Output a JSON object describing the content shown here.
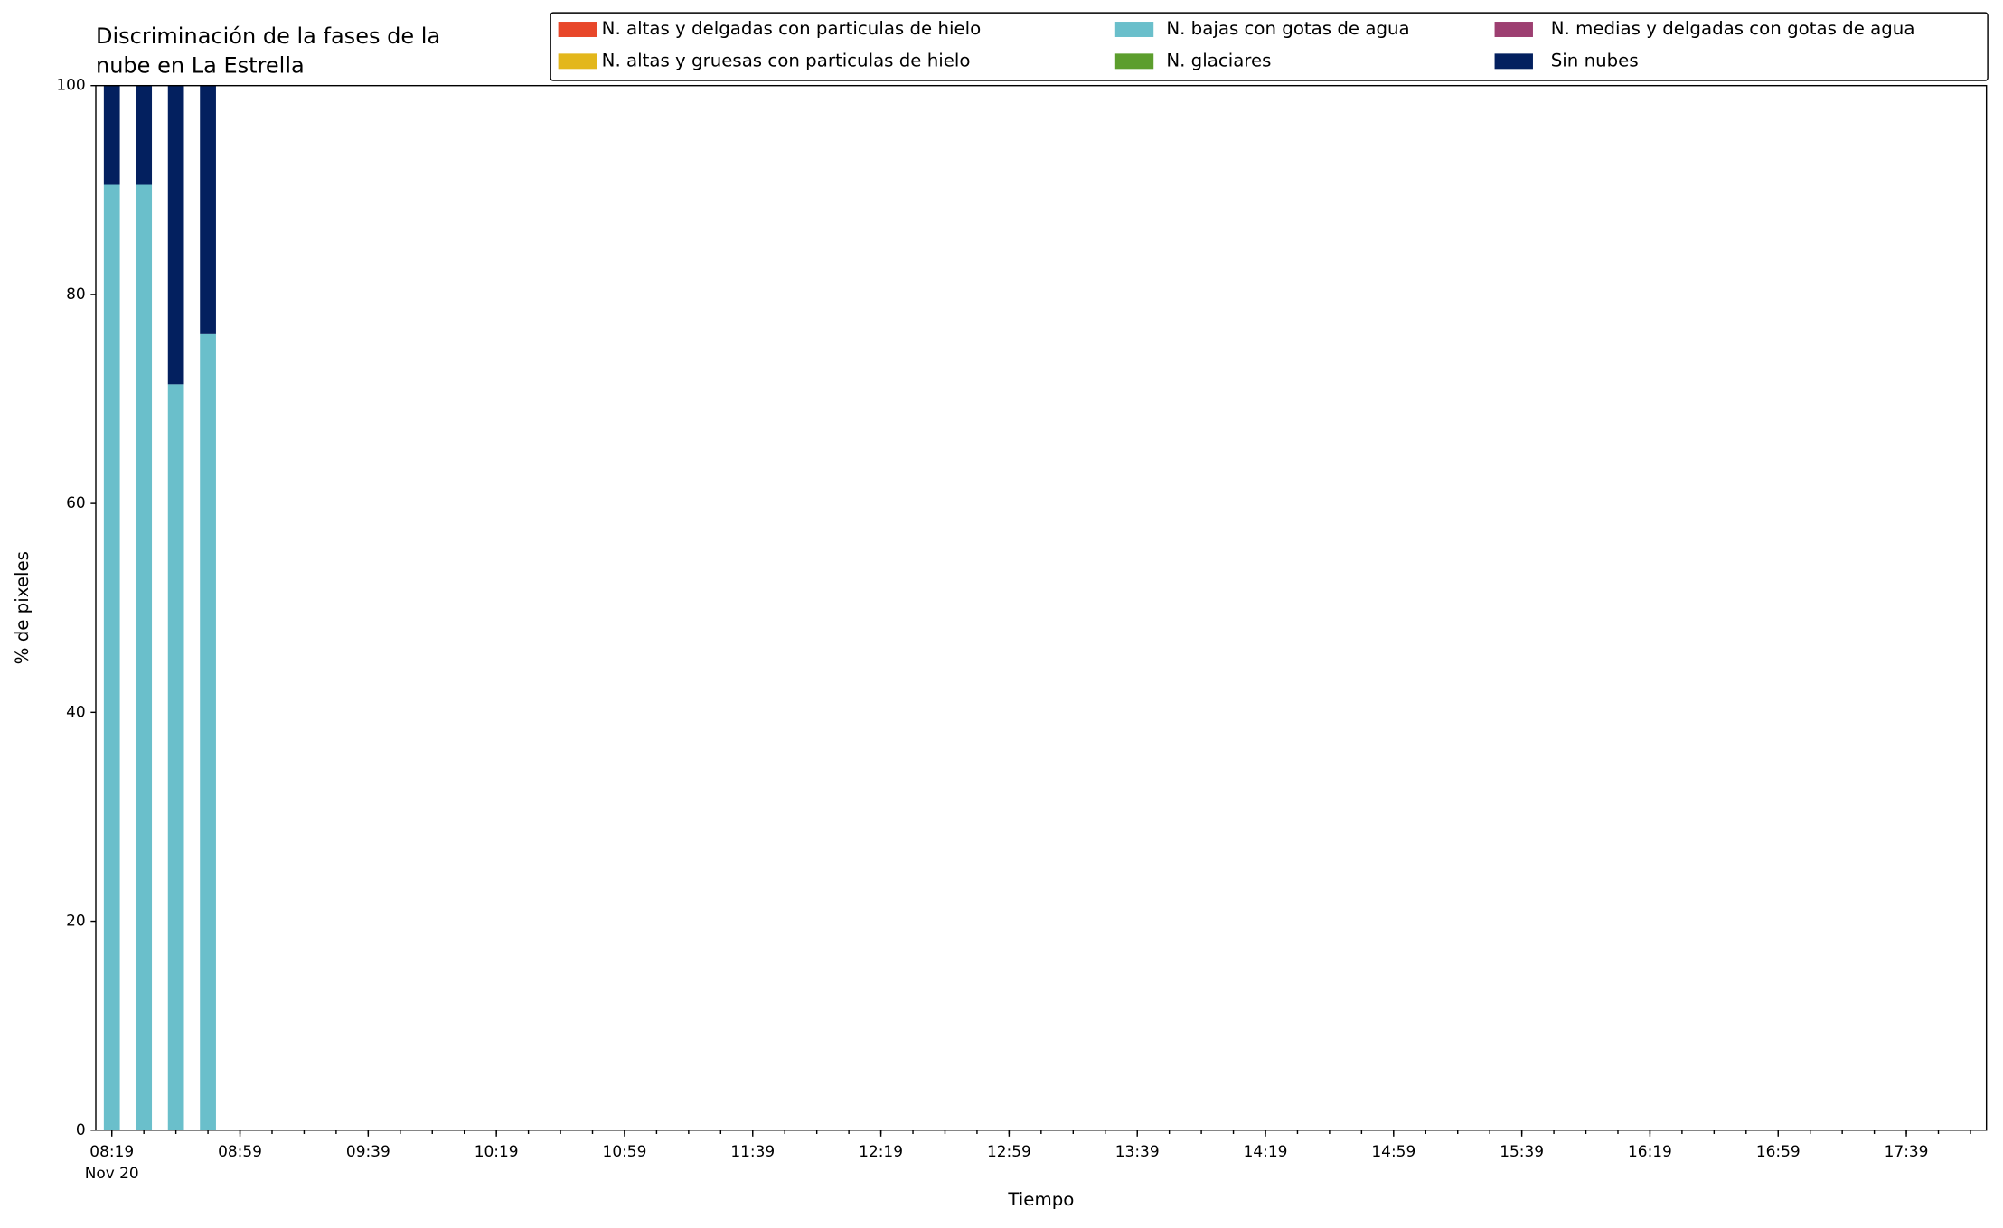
{
  "chart_data": {
    "type": "stacked_bar",
    "title": [
      "Discriminación de la fases de la",
      "nube en La Estrella"
    ],
    "x_label": "Tiempo",
    "y_label": "% de pixeles",
    "x": [
      "08:19",
      "08:29",
      "08:39",
      "08:49"
    ],
    "x_offset_label": "Nov 20",
    "xlim": [
      "08:14",
      "18:04"
    ],
    "xticks": [
      "08:19",
      "08:59",
      "09:39",
      "10:19",
      "10:59",
      "11:39",
      "12:19",
      "12:59",
      "13:39",
      "14:19",
      "14:59",
      "15:39",
      "16:19",
      "16:59",
      "17:39"
    ],
    "xticks_minor": [
      "08:19",
      "08:29",
      "08:39",
      "08:49",
      "08:59",
      "09:09",
      "09:19",
      "09:29",
      "09:39",
      "09:49",
      "09:59",
      "10:09",
      "10:19",
      "10:29",
      "10:39",
      "10:49",
      "10:59",
      "11:09",
      "11:19",
      "11:29",
      "11:39",
      "11:49",
      "11:59",
      "12:09",
      "12:19",
      "12:29",
      "12:39",
      "12:49",
      "12:59",
      "13:09",
      "13:19",
      "13:29",
      "13:39",
      "13:49",
      "13:59",
      "14:09",
      "14:19",
      "14:29",
      "14:39",
      "14:49",
      "14:59",
      "15:09",
      "15:19",
      "15:29",
      "15:39",
      "15:49",
      "15:59",
      "16:09",
      "16:19",
      "16:29",
      "16:39",
      "16:49",
      "16:59",
      "17:09",
      "17:19",
      "17:29",
      "17:39",
      "17:49",
      "17:59"
    ],
    "ylim": [
      0,
      100
    ],
    "yticks": [
      0,
      20,
      40,
      60,
      80,
      100
    ],
    "legend": "upper right",
    "legend_columns": 3,
    "series": [
      {
        "name": "N. altas y delgadas con particulas de hielo",
        "color": "#e8472a",
        "values": [
          0,
          0,
          0,
          0
        ]
      },
      {
        "name": "N. altas y gruesas con particulas de hielo",
        "color": "#e3b71b",
        "values": [
          0,
          0,
          0,
          0
        ]
      },
      {
        "name": "N. bajas con gotas de agua",
        "color": "#6abfcb",
        "values": [
          90.5,
          90.5,
          71.4,
          76.2
        ]
      },
      {
        "name": "N. glaciares",
        "color": "#5c9e2d",
        "values": [
          0,
          0,
          0,
          0
        ]
      },
      {
        "name": "N. medias y delgadas con gotas de agua",
        "color": "#9d3f71",
        "values": [
          0,
          0,
          0,
          0
        ]
      },
      {
        "name": "Sin nubes",
        "color": "#03205f",
        "values": [
          9.5,
          9.5,
          28.6,
          23.8
        ]
      }
    ]
  }
}
